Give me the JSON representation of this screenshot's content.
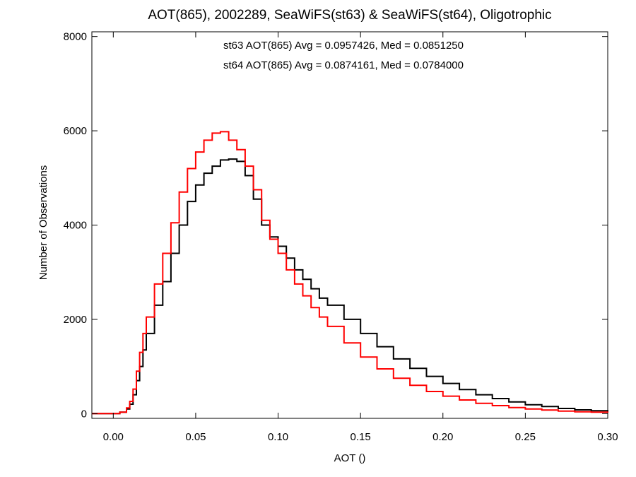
{
  "chart_data": {
    "type": "line",
    "step": true,
    "title": "AOT(865), 2002289, SeaWiFS(st63) & SeaWiFS(st64), Oligotrophic",
    "xlabel": "AOT ()",
    "ylabel": "Number of Observations",
    "xlim": [
      -0.013,
      0.3
    ],
    "ylim": [
      -100,
      8100
    ],
    "x_ticks": [
      0.0,
      0.05,
      0.1,
      0.15,
      0.2,
      0.25,
      0.3
    ],
    "x_tick_labels": [
      "0.00",
      "0.05",
      "0.10",
      "0.15",
      "0.20",
      "0.25",
      "0.30"
    ],
    "y_ticks": [
      0,
      2000,
      4000,
      6000,
      8000
    ],
    "y_tick_labels": [
      "0",
      "2000",
      "4000",
      "6000",
      "8000"
    ],
    "annotations": [
      {
        "text": "st63 AOT(865) Avg = 0.0957426, Med = 0.0851250",
        "color": "#000000"
      },
      {
        "text": "st64 AOT(865) Avg = 0.0874161, Med = 0.0784000",
        "color": "#ff0000"
      }
    ],
    "series": [
      {
        "color": "#000000",
        "x": [
          -0.013,
          0.0,
          0.004,
          0.008,
          0.01,
          0.012,
          0.014,
          0.016,
          0.018,
          0.02,
          0.025,
          0.03,
          0.035,
          0.04,
          0.045,
          0.05,
          0.055,
          0.06,
          0.065,
          0.07,
          0.075,
          0.08,
          0.085,
          0.09,
          0.095,
          0.1,
          0.105,
          0.11,
          0.115,
          0.12,
          0.125,
          0.13,
          0.14,
          0.15,
          0.16,
          0.17,
          0.18,
          0.19,
          0.2,
          0.21,
          0.22,
          0.23,
          0.24,
          0.25,
          0.26,
          0.27,
          0.28,
          0.29,
          0.3
        ],
        "y": [
          0,
          0,
          30,
          100,
          200,
          400,
          700,
          1000,
          1350,
          1700,
          2300,
          2800,
          3400,
          4000,
          4500,
          4850,
          5100,
          5250,
          5380,
          5400,
          5350,
          5050,
          4550,
          4000,
          3750,
          3550,
          3300,
          3050,
          2850,
          2650,
          2450,
          2300,
          2000,
          1700,
          1420,
          1160,
          960,
          790,
          640,
          510,
          400,
          320,
          250,
          190,
          150,
          110,
          80,
          60,
          40
        ]
      },
      {
        "color": "#ff0000",
        "x": [
          -0.013,
          0.0,
          0.004,
          0.008,
          0.01,
          0.012,
          0.014,
          0.016,
          0.018,
          0.02,
          0.025,
          0.03,
          0.035,
          0.04,
          0.045,
          0.05,
          0.055,
          0.06,
          0.065,
          0.07,
          0.075,
          0.08,
          0.085,
          0.09,
          0.095,
          0.1,
          0.105,
          0.11,
          0.115,
          0.12,
          0.125,
          0.13,
          0.14,
          0.15,
          0.16,
          0.17,
          0.18,
          0.19,
          0.2,
          0.21,
          0.22,
          0.23,
          0.24,
          0.25,
          0.26,
          0.27,
          0.28,
          0.29,
          0.3
        ],
        "y": [
          0,
          0,
          30,
          120,
          260,
          520,
          900,
          1300,
          1700,
          2050,
          2750,
          3400,
          4050,
          4700,
          5200,
          5550,
          5800,
          5950,
          5980,
          5800,
          5600,
          5250,
          4750,
          4100,
          3700,
          3400,
          3050,
          2750,
          2500,
          2250,
          2050,
          1850,
          1500,
          1200,
          950,
          750,
          600,
          470,
          370,
          290,
          220,
          170,
          130,
          100,
          75,
          55,
          40,
          30,
          20
        ]
      }
    ]
  }
}
